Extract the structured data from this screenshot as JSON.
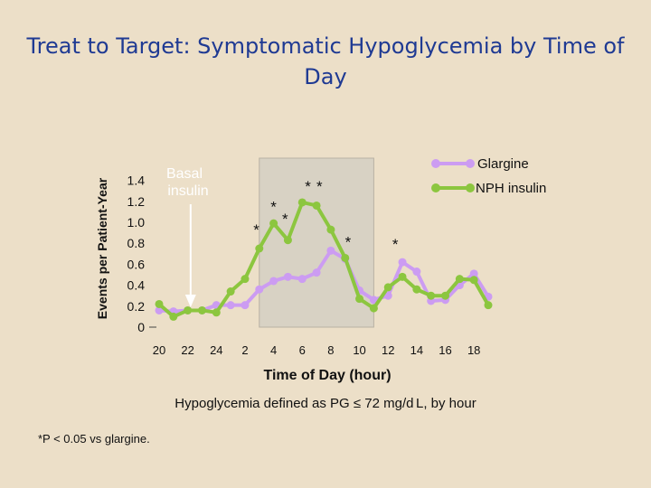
{
  "title_line1": "Treat to Target:  Symptomatic Hypoglycemia by Time of",
  "title_line2": "Day",
  "definition_note": "Hypoglycemia defined as PG ≤ 72 mg/d L, by hour",
  "footnote": "*P < 0.05 vs glargine.",
  "colors": {
    "background": "#ecdfc8",
    "title": "#1f3a93",
    "glargine": "#cc9cf2",
    "nph": "#8cc63f",
    "shade": "#d8d2c4"
  },
  "chart_data": {
    "type": "line",
    "xlabel": "Time of Day (hour)",
    "ylabel": "Events per Patient-Year",
    "ylim": [
      0,
      1.5
    ],
    "y_ticks": [
      "0",
      "0.2",
      "0.4",
      "0.6",
      "0.8",
      "1.0",
      "1.2",
      "1.4"
    ],
    "y_tick_values": [
      0,
      0.2,
      0.4,
      0.6,
      0.8,
      1.0,
      1.2,
      1.4
    ],
    "x_ticks": [
      "20",
      "22",
      "24",
      "2",
      "4",
      "6",
      "8",
      "10",
      "12",
      "14",
      "16",
      "18"
    ],
    "x": [
      20,
      21,
      22,
      23,
      24,
      25,
      26,
      27,
      28,
      29,
      30,
      31,
      32,
      33,
      34,
      35,
      36,
      37,
      38,
      39,
      40,
      41,
      42,
      43
    ],
    "shaded_region": [
      27,
      35
    ],
    "basal_annotation": {
      "label_line1": "Basal",
      "label_line2": "insulin",
      "x": 22.2
    },
    "legend_position": "top-right",
    "series": [
      {
        "name": "Glargine",
        "values": [
          0.16,
          0.15,
          0.16,
          0.16,
          0.21,
          0.21,
          0.21,
          0.36,
          0.44,
          0.48,
          0.46,
          0.52,
          0.73,
          0.65,
          0.35,
          0.26,
          0.3,
          0.62,
          0.53,
          0.25,
          0.26,
          0.4,
          0.51,
          0.29
        ]
      },
      {
        "name": "NPH insulin",
        "values": [
          0.22,
          0.1,
          0.16,
          0.16,
          0.14,
          0.34,
          0.46,
          0.75,
          0.99,
          0.83,
          1.19,
          1.16,
          0.93,
          0.66,
          0.27,
          0.18,
          0.38,
          0.48,
          0.36,
          0.3,
          0.3,
          0.46,
          0.45,
          0.21
        ]
      }
    ],
    "significance_markers": [
      {
        "label": "*",
        "x": 26.8,
        "y": 0.95
      },
      {
        "label": "*",
        "x": 28.0,
        "y": 1.17
      },
      {
        "label": "*",
        "x": 28.8,
        "y": 1.05
      },
      {
        "label": "*",
        "x": 30.4,
        "y": 1.36
      },
      {
        "label": "*",
        "x": 31.2,
        "y": 1.36
      },
      {
        "label": "*",
        "x": 33.2,
        "y": 0.83
      },
      {
        "label": "*",
        "x": 36.5,
        "y": 0.81
      }
    ]
  }
}
